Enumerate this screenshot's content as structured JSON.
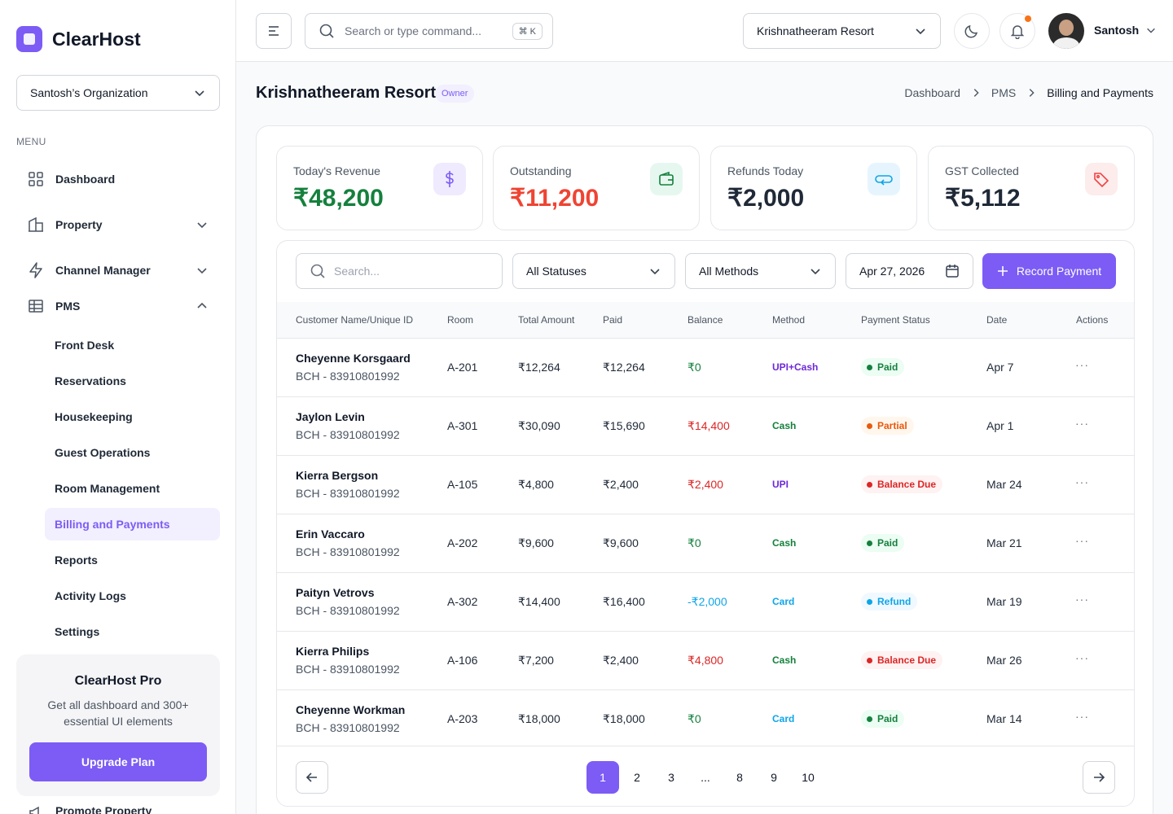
{
  "brand": {
    "name": "ClearHost"
  },
  "sidebar": {
    "org": "Santosh’s Organization",
    "menu_heading": "MENU",
    "items": [
      {
        "label": "Dashboard",
        "icon": "grid-icon"
      },
      {
        "label": "Property",
        "icon": "building-icon"
      },
      {
        "label": "Channel Manager",
        "icon": "bolt-icon"
      },
      {
        "label": "PMS",
        "icon": "table-icon"
      }
    ],
    "pms_sub": [
      "Front Desk",
      "Reservations",
      "Housekeeping",
      "Guest Operations",
      "Room Management",
      "Billing and Payments",
      "Reports",
      "Activity Logs",
      "Settings"
    ],
    "active_sub": "Billing and Payments",
    "pro": {
      "title": "ClearHost Pro",
      "text": "Get all dashboard and 300+ essential UI elements",
      "button": "Upgrade Plan"
    },
    "peek_item": "Promote Property"
  },
  "topbar": {
    "search_placeholder": "Search or type command...",
    "shortcut": "⌘ K",
    "property": "Krishnatheeram Resort",
    "user": "Santosh"
  },
  "page": {
    "title": "Krishnatheeram Resort",
    "role_badge": "Owner",
    "breadcrumb": [
      "Dashboard",
      "PMS",
      "Billing and Payments"
    ]
  },
  "kpis": [
    {
      "label": "Today's Revenue",
      "value": "₹48,200",
      "color": "#15803d",
      "icon": "dollar-icon",
      "icon_bg": "#efeafe",
      "icon_color": "#7c5cf5"
    },
    {
      "label": "Outstanding",
      "value": "₹11,200",
      "color": "#ef4433",
      "icon": "wallet-icon",
      "icon_bg": "#e6f7ef",
      "icon_color": "#15803d"
    },
    {
      "label": "Refunds Today",
      "value": "₹2,000",
      "color": "#1f2937",
      "icon": "return-icon",
      "icon_bg": "#e6f5fd",
      "icon_color": "#0ea5e9"
    },
    {
      "label": "GST Collected",
      "value": "₹5,112",
      "color": "#1f2937",
      "icon": "tag-icon",
      "icon_bg": "#fdecec",
      "icon_color": "#ef4444"
    }
  ],
  "filters": {
    "search_placeholder": "Search...",
    "status": "All Statuses",
    "method": "All Methods",
    "date": "Apr 27, 2026",
    "record_button": "Record Payment"
  },
  "table": {
    "columns": [
      "Customer Name/Unique ID",
      "Room",
      "Total Amount",
      "Paid",
      "Balance",
      "Method",
      "Payment Status",
      "Date",
      "Actions"
    ],
    "rows": [
      {
        "name": "Cheyenne Korsgaard",
        "uid": "BCH - 83910801992",
        "room": "A-201",
        "total": "₹12,264",
        "paid": "₹12,264",
        "balance": "₹0",
        "balance_color": "#15803d",
        "method": "UPI+Cash",
        "method_color": "#6d28d9",
        "status": "Paid",
        "status_color": "#15803d",
        "status_bg": "#ecfdf3",
        "date": "Apr 7"
      },
      {
        "name": "Jaylon Levin",
        "uid": "BCH - 83910801992",
        "room": "A-301",
        "total": "₹30,090",
        "paid": "₹15,690",
        "balance": "₹14,400",
        "balance_color": "#dc2626",
        "method": "Cash",
        "method_color": "#15803d",
        "status": "Partial",
        "status_color": "#ea580c",
        "status_bg": "#fff7ed",
        "date": "Apr 1"
      },
      {
        "name": "Kierra Bergson",
        "uid": "BCH - 83910801992",
        "room": "A-105",
        "total": "₹4,800",
        "paid": "₹2,400",
        "balance": "₹2,400",
        "balance_color": "#dc2626",
        "method": "UPI",
        "method_color": "#6d28d9",
        "status": "Balance Due",
        "status_color": "#dc2626",
        "status_bg": "#fef2f2",
        "date": "Mar 24"
      },
      {
        "name": "Erin Vaccaro",
        "uid": "BCH - 83910801992",
        "room": "A-202",
        "total": "₹9,600",
        "paid": "₹9,600",
        "balance": "₹0",
        "balance_color": "#15803d",
        "method": "Cash",
        "method_color": "#15803d",
        "status": "Paid",
        "status_color": "#15803d",
        "status_bg": "#ecfdf3",
        "date": "Mar 21"
      },
      {
        "name": "Paityn Vetrovs",
        "uid": "BCH - 83910801992",
        "room": "A-302",
        "total": "₹14,400",
        "paid": "₹16,400",
        "balance": "-₹2,000",
        "balance_color": "#0ea5e9",
        "method": "Card",
        "method_color": "#0ea5e9",
        "status": "Refund",
        "status_color": "#0ea5e9",
        "status_bg": "#f0f9ff",
        "date": "Mar 19"
      },
      {
        "name": "Kierra Philips",
        "uid": "BCH - 83910801992",
        "room": "A-106",
        "total": "₹7,200",
        "paid": "₹2,400",
        "balance": "₹4,800",
        "balance_color": "#dc2626",
        "method": "Cash",
        "method_color": "#15803d",
        "status": "Balance Due",
        "status_color": "#dc2626",
        "status_bg": "#fef2f2",
        "date": "Mar 26"
      },
      {
        "name": "Cheyenne Workman",
        "uid": "BCH - 83910801992",
        "room": "A-203",
        "total": "₹18,000",
        "paid": "₹18,000",
        "balance": "₹0",
        "balance_color": "#15803d",
        "method": "Card",
        "method_color": "#0ea5e9",
        "status": "Paid",
        "status_color": "#15803d",
        "status_bg": "#ecfdf3",
        "date": "Mar 14"
      }
    ]
  },
  "pagination": {
    "pages": [
      "1",
      "2",
      "3",
      "...",
      "8",
      "9",
      "10"
    ],
    "current": "1"
  },
  "colors": {
    "accent": "#7c5cf5"
  }
}
